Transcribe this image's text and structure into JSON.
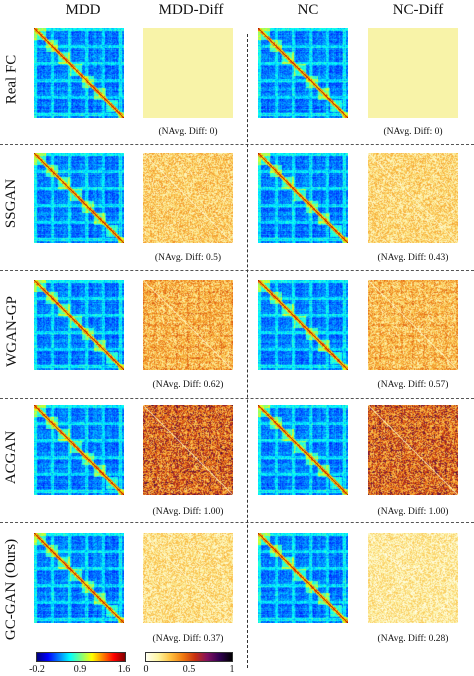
{
  "columns": [
    "MDD",
    "MDD-Diff",
    "NC",
    "NC-Diff"
  ],
  "rows": [
    {
      "label": "Real FC",
      "mdd_caption": "(NAvg. Diff: 0)",
      "nc_caption": "(NAvg. Diff: 0)",
      "mdd_diff_level": 0,
      "nc_diff_level": 0
    },
    {
      "label": "SSGAN",
      "mdd_caption": "(NAvg. Diff: 0.5)",
      "nc_caption": "(NAvg. Diff: 0.43)",
      "mdd_diff_level": 0.5,
      "nc_diff_level": 0.43
    },
    {
      "label": "WGAN-GP",
      "mdd_caption": "(NAvg. Diff: 0.62)",
      "nc_caption": "(NAvg. Diff: 0.57)",
      "mdd_diff_level": 0.62,
      "nc_diff_level": 0.57
    },
    {
      "label": "ACGAN",
      "mdd_caption": "(NAvg. Diff: 1.00)",
      "nc_caption": "(NAvg. Diff: 1.00)",
      "mdd_diff_level": 1.0,
      "nc_diff_level": 1.0
    },
    {
      "label": "GC-GAN (Ours)",
      "mdd_caption": "(NAvg. Diff: 0.37)",
      "nc_caption": "(NAvg. Diff: 0.28)",
      "mdd_diff_level": 0.37,
      "nc_diff_level": 0.28
    }
  ],
  "colorbars": {
    "fc": {
      "colormap": "jet",
      "ticks": [
        "-0.2",
        "0.9",
        "1.6"
      ]
    },
    "diff": {
      "colormap": "afmhot_r",
      "ticks": [
        "0",
        "0.5",
        "1"
      ]
    }
  },
  "colors": {
    "diff_zero": "#f8f3a8",
    "fc_background": "#1a5fd6"
  }
}
